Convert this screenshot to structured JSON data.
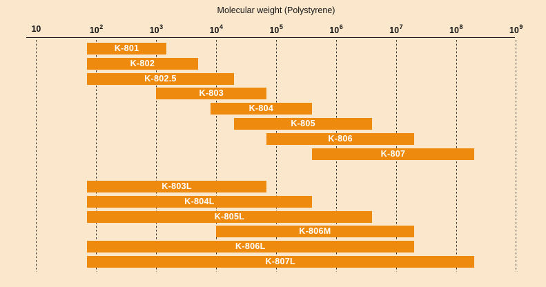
{
  "colors": {
    "background": "#fae7cc",
    "bar": "#ee8a0d",
    "bar_label": "#ffffff",
    "axis": "#141414",
    "gridline": "#2e2e2e"
  },
  "chart_data": {
    "type": "bar",
    "variant": "horizontal-log-range",
    "title": "Molecular weight (Polystyrene)",
    "xlabel": "Molecular weight (Polystyrene)",
    "ylabel": "",
    "x_scale": "log10",
    "x_range": [
      10,
      1000000000
    ],
    "grid": "vertical dashed line at every decade",
    "legend": "none",
    "x_ticks": [
      {
        "text": "10",
        "sup": ""
      },
      {
        "text": "10",
        "sup": "2"
      },
      {
        "text": "10",
        "sup": "3"
      },
      {
        "text": "10",
        "sup": "4"
      },
      {
        "text": "10",
        "sup": "5"
      },
      {
        "text": "10",
        "sup": "6"
      },
      {
        "text": "10",
        "sup": "7"
      },
      {
        "text": "10",
        "sup": "8"
      },
      {
        "text": "10",
        "sup": "9"
      }
    ],
    "bars": [
      {
        "name": "K-801",
        "group": 0,
        "row": 0,
        "range": [
          70,
          1500
        ]
      },
      {
        "name": "K-802",
        "group": 0,
        "row": 1,
        "range": [
          70,
          5000
        ]
      },
      {
        "name": "K-802.5",
        "group": 0,
        "row": 2,
        "range": [
          70,
          20000
        ]
      },
      {
        "name": "K-803",
        "group": 0,
        "row": 3,
        "range": [
          1000,
          70000
        ]
      },
      {
        "name": "K-804",
        "group": 0,
        "row": 4,
        "range": [
          8000,
          400000
        ]
      },
      {
        "name": "K-805",
        "group": 0,
        "row": 5,
        "range": [
          20000,
          4000000
        ]
      },
      {
        "name": "K-806",
        "group": 0,
        "row": 6,
        "range": [
          70000,
          20000000
        ]
      },
      {
        "name": "K-807",
        "group": 0,
        "row": 7,
        "range": [
          400000,
          200000000
        ]
      },
      {
        "name": "K-803L",
        "group": 1,
        "row": 0,
        "range": [
          70,
          70000
        ]
      },
      {
        "name": "K-804L",
        "group": 1,
        "row": 1,
        "range": [
          70,
          400000
        ]
      },
      {
        "name": "K-805L",
        "group": 1,
        "row": 2,
        "range": [
          70,
          4000000
        ]
      },
      {
        "name": "K-806M",
        "group": 1,
        "row": 3,
        "range": [
          10000,
          20000000
        ]
      },
      {
        "name": "K-806L",
        "group": 1,
        "row": 4,
        "range": [
          70,
          20000000
        ]
      },
      {
        "name": "K-807L",
        "group": 1,
        "row": 5,
        "range": [
          70,
          200000000
        ]
      }
    ]
  }
}
